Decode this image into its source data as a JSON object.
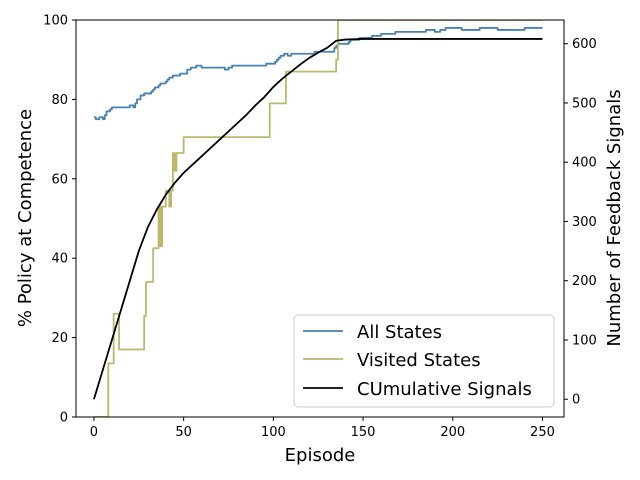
{
  "chart_data": {
    "type": "line",
    "xlabel": "Episode",
    "ylabel_left": "% Policy at Competence",
    "ylabel_right": "Number of Feedback Signals",
    "xlim": [
      -10,
      262
    ],
    "ylim_left": [
      0,
      100
    ],
    "ylim_right": [
      -30,
      640
    ],
    "x_ticks": [
      0,
      50,
      100,
      150,
      200,
      250
    ],
    "y_ticks_left": [
      0,
      20,
      40,
      60,
      80,
      100
    ],
    "y_ticks_right": [
      0,
      100,
      200,
      300,
      400,
      500,
      600
    ],
    "grid": false,
    "legend_position": "lower-right",
    "series": [
      {
        "name": "All States",
        "axis": "left",
        "color": "#4682b4",
        "step": true,
        "points": [
          [
            0,
            75.5
          ],
          [
            1,
            75
          ],
          [
            3,
            75.5
          ],
          [
            5,
            75
          ],
          [
            6,
            76
          ],
          [
            7,
            77
          ],
          [
            9,
            77.5
          ],
          [
            10,
            78
          ],
          [
            19,
            78
          ],
          [
            20,
            78.5
          ],
          [
            22,
            78
          ],
          [
            23,
            79
          ],
          [
            24,
            80
          ],
          [
            26,
            81
          ],
          [
            28,
            81.5
          ],
          [
            32,
            82
          ],
          [
            33,
            82.5
          ],
          [
            34,
            83
          ],
          [
            36,
            83.5
          ],
          [
            37,
            84
          ],
          [
            40,
            84.5
          ],
          [
            41,
            85
          ],
          [
            42,
            85.5
          ],
          [
            44,
            86
          ],
          [
            48,
            86.5
          ],
          [
            52,
            87.5
          ],
          [
            54,
            88
          ],
          [
            57,
            88.5
          ],
          [
            60,
            88
          ],
          [
            72,
            88
          ],
          [
            73,
            87.5
          ],
          [
            75,
            88
          ],
          [
            77,
            88.5
          ],
          [
            95,
            88.5
          ],
          [
            96,
            89
          ],
          [
            101,
            89.5
          ],
          [
            102,
            90
          ],
          [
            103,
            90.5
          ],
          [
            104,
            91
          ],
          [
            106,
            91.5
          ],
          [
            108,
            91
          ],
          [
            110,
            91.5
          ],
          [
            115,
            91.5
          ],
          [
            123,
            92
          ],
          [
            130,
            92
          ],
          [
            134,
            93
          ],
          [
            135,
            93.5
          ],
          [
            136,
            94
          ],
          [
            142,
            94.5
          ],
          [
            143,
            95
          ],
          [
            148,
            95.5
          ],
          [
            155,
            96
          ],
          [
            160,
            96.5
          ],
          [
            168,
            97
          ],
          [
            185,
            97.5
          ],
          [
            190,
            97
          ],
          [
            193,
            97.5
          ],
          [
            196,
            98
          ],
          [
            205,
            97.5
          ],
          [
            215,
            98
          ],
          [
            225,
            97.5
          ],
          [
            240,
            98
          ],
          [
            250,
            98
          ]
        ]
      },
      {
        "name": "Visited States",
        "axis": "left",
        "color": "#bdb76b",
        "step": true,
        "points": [
          [
            0,
            0
          ],
          [
            7,
            0
          ],
          [
            8,
            13.5
          ],
          [
            10,
            13.5
          ],
          [
            11,
            26
          ],
          [
            13,
            26
          ],
          [
            14,
            17
          ],
          [
            27,
            17
          ],
          [
            28,
            25.5
          ],
          [
            29,
            34
          ],
          [
            32,
            34
          ],
          [
            33,
            42.5
          ],
          [
            35,
            42.5
          ],
          [
            36,
            53
          ],
          [
            37,
            43
          ],
          [
            38,
            53
          ],
          [
            39,
            53
          ],
          [
            40,
            57
          ],
          [
            42,
            53
          ],
          [
            43,
            57
          ],
          [
            44,
            66.5
          ],
          [
            45,
            62
          ],
          [
            46,
            66.5
          ],
          [
            49,
            66.5
          ],
          [
            50,
            70.5
          ],
          [
            97,
            70.5
          ],
          [
            98,
            79
          ],
          [
            106,
            79
          ],
          [
            107,
            87
          ],
          [
            134,
            87
          ],
          [
            135,
            90
          ],
          [
            136,
            100
          ],
          [
            250,
            100
          ]
        ]
      },
      {
        "name": "CUmulative Signals",
        "axis": "right",
        "color": "#000000",
        "step": false,
        "points": [
          [
            0,
            0
          ],
          [
            5,
            50
          ],
          [
            10,
            100
          ],
          [
            15,
            150
          ],
          [
            20,
            200
          ],
          [
            25,
            250
          ],
          [
            30,
            290
          ],
          [
            35,
            320
          ],
          [
            40,
            345
          ],
          [
            45,
            365
          ],
          [
            50,
            382
          ],
          [
            55,
            396
          ],
          [
            60,
            410
          ],
          [
            65,
            424
          ],
          [
            70,
            438
          ],
          [
            75,
            452
          ],
          [
            80,
            466
          ],
          [
            85,
            480
          ],
          [
            90,
            496
          ],
          [
            95,
            510
          ],
          [
            100,
            527
          ],
          [
            105,
            541
          ],
          [
            110,
            553
          ],
          [
            115,
            565
          ],
          [
            120,
            576
          ],
          [
            125,
            585
          ],
          [
            130,
            593
          ],
          [
            135,
            605
          ],
          [
            140,
            607
          ],
          [
            150,
            608
          ],
          [
            200,
            608
          ],
          [
            250,
            608
          ]
        ]
      }
    ]
  }
}
